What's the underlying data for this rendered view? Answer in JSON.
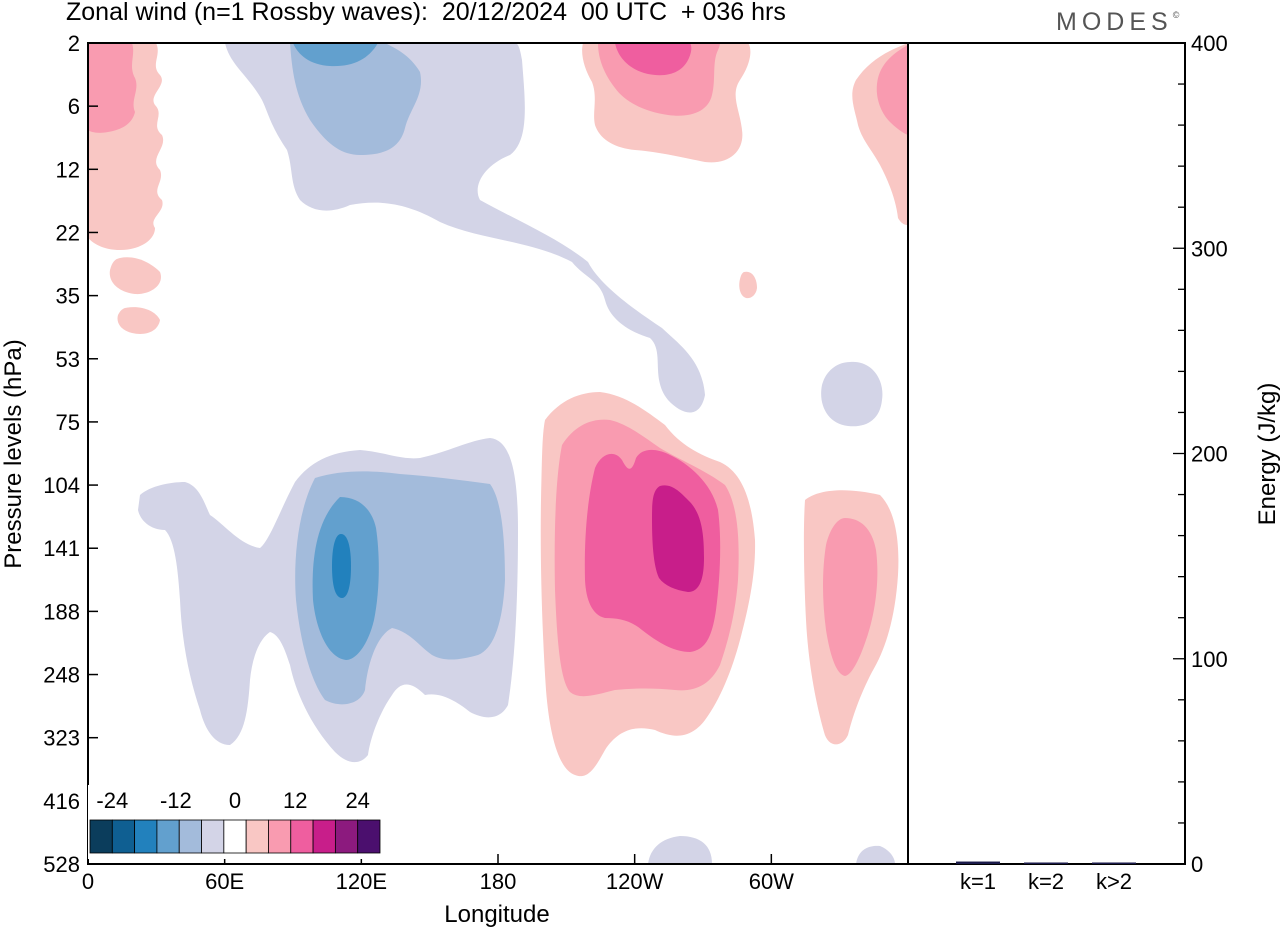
{
  "title": "Zonal wind (n=1 Rossby waves):  20/12/2024  00 UTC  + 036 hrs",
  "brand": "MODES",
  "brand_mark": "©",
  "chart_data": [
    {
      "type": "heatmap",
      "title": "Zonal wind (n=1 Rossby waves):  20/12/2024  00 UTC  + 036 hrs",
      "xlabel": "Longitude",
      "ylabel": "Pressure levels (hPa)",
      "x_ticks": [
        "0",
        "60E",
        "120E",
        "180",
        "120W",
        "60W"
      ],
      "x_tick_values": [
        0,
        60,
        120,
        180,
        240,
        300
      ],
      "xlim": [
        0,
        360
      ],
      "y_ticks": [
        "2",
        "6",
        "12",
        "22",
        "35",
        "53",
        "75",
        "104",
        "141",
        "188",
        "248",
        "323",
        "416",
        "528"
      ],
      "colorbar": {
        "tick_labels": [
          "-24",
          "-12",
          "0",
          "12",
          "24"
        ],
        "colors": [
          "#0b3d5c",
          "#0f5f92",
          "#2281bd",
          "#62a0ce",
          "#a3bbdb",
          "#d3d4e7",
          "#ffffff",
          "#f9c7c4",
          "#f99bb0",
          "#ef5e9f",
          "#c81e8a",
          "#8c1a7e",
          "#4b0f6e"
        ],
        "legend_position": "bottom-left"
      },
      "features": [
        {
          "sign": "negative",
          "lon": 110,
          "level": "141",
          "peak": -18
        },
        {
          "sign": "negative",
          "lon": 120,
          "level": "2",
          "peak": -12
        },
        {
          "sign": "positive",
          "lon": 257,
          "level": "141",
          "peak": 21
        },
        {
          "sign": "positive",
          "lon": 243,
          "level": "2",
          "peak": 12
        },
        {
          "sign": "positive",
          "lon": 4,
          "level": "6",
          "peak": 9
        },
        {
          "sign": "positive",
          "lon": 345,
          "level": "6",
          "peak": 9
        },
        {
          "sign": "positive",
          "lon": 322,
          "level": "141",
          "peak": 9
        }
      ]
    },
    {
      "type": "bar",
      "ylabel": "Energy (J/kg)",
      "categories": [
        "k=1",
        "k=2",
        "k>2"
      ],
      "values": [
        1.2,
        0.5,
        0.5
      ],
      "ylim": [
        0,
        400
      ],
      "y_ticks": [
        "0",
        "100",
        "200",
        "300",
        "400"
      ],
      "bar_color": "#1a1a4a"
    }
  ]
}
